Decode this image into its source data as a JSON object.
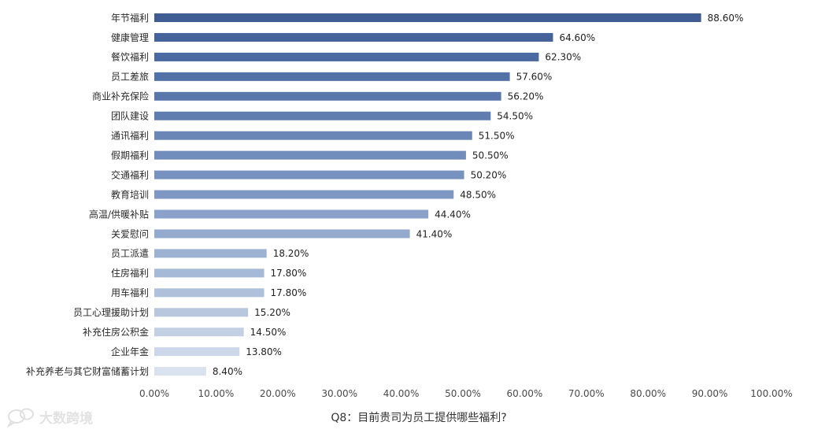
{
  "chart_data": {
    "type": "bar",
    "orientation": "horizontal",
    "categories": [
      "年节福利",
      "健康管理",
      "餐饮福利",
      "员工差旅",
      "商业补充保险",
      "团队建设",
      "通讯福利",
      "假期福利",
      "交通福利",
      "教育培训",
      "高温/供暖补贴",
      "关爱慰问",
      "员工派遣",
      "住房福利",
      "用车福利",
      "员工心理援助计划",
      "补充住房公积金",
      "企业年金",
      "补充养老与其它财富储蓄计划"
    ],
    "values": [
      88.6,
      64.6,
      62.3,
      57.6,
      56.2,
      54.5,
      51.5,
      50.5,
      50.2,
      48.5,
      44.4,
      41.4,
      18.2,
      17.8,
      17.8,
      15.2,
      14.5,
      13.8,
      8.4
    ],
    "value_labels": [
      "88.60%",
      "64.60%",
      "62.30%",
      "57.60%",
      "56.20%",
      "54.50%",
      "51.50%",
      "50.50%",
      "50.20%",
      "48.50%",
      "44.40%",
      "41.40%",
      "18.20%",
      "17.80%",
      "17.80%",
      "15.20%",
      "14.50%",
      "13.80%",
      "8.40%"
    ],
    "xlim": [
      0,
      100
    ],
    "x_ticks": [
      "0.00%",
      "10.00%",
      "20.00%",
      "30.00%",
      "40.00%",
      "50.00%",
      "60.00%",
      "70.00%",
      "80.00%",
      "90.00%",
      "100.00%"
    ],
    "grid": false,
    "legend": "none",
    "colors": [
      "#3f5d92",
      "#44639a",
      "#4a69a0",
      "#5271a6",
      "#5977ab",
      "#607db0",
      "#6a86b6",
      "#718dbb",
      "#7892bf",
      "#7f98c3",
      "#8aa2c9",
      "#93a9cd",
      "#9db2d2",
      "#a6b9d6",
      "#aec0da",
      "#b8c7de",
      "#c3d0e4",
      "#ccd7e9",
      "#dbe2ef"
    ]
  },
  "caption": "Q8：目前贵司为员工提供哪些福利?",
  "watermark": {
    "text": "大数跨境",
    "icon": "chat-bubble-icon"
  }
}
